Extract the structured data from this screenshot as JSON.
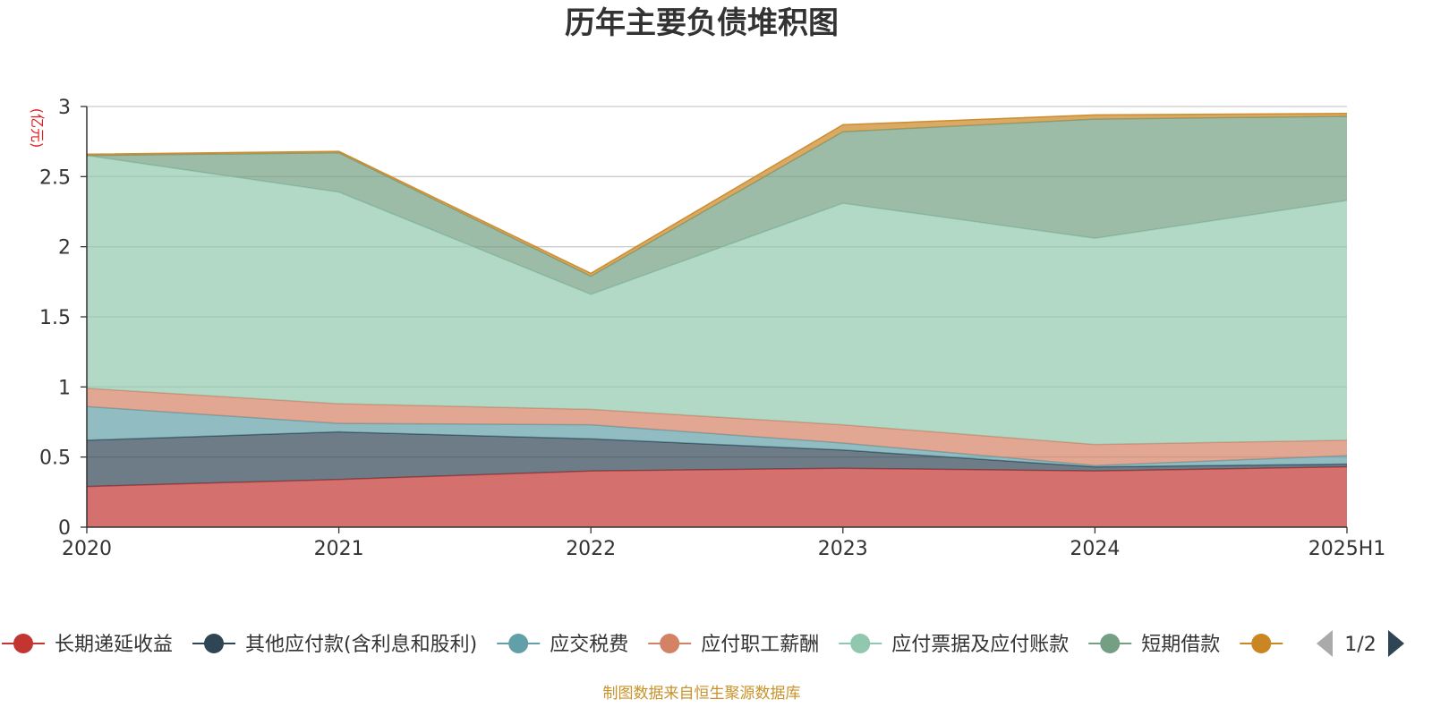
{
  "chart_data": {
    "type": "area",
    "stacked": true,
    "title": "历年主要负债堆积图",
    "y_unit_label": "(亿元)",
    "categories": [
      "2020",
      "2021",
      "2022",
      "2023",
      "2024",
      "2025H1"
    ],
    "ylim": [
      0,
      3
    ],
    "y_ticks": [
      "0",
      "0.5",
      "1",
      "1.5",
      "2",
      "2.5",
      "3"
    ],
    "grid": true,
    "legend_position": "bottom",
    "series": [
      {
        "name": "长期递延收益",
        "color": "#c23531",
        "values": [
          0.29,
          0.34,
          0.4,
          0.42,
          0.4,
          0.43
        ]
      },
      {
        "name": "其他应付款(含利息和股利)",
        "color": "#2f4554",
        "values": [
          0.33,
          0.34,
          0.23,
          0.13,
          0.03,
          0.02
        ]
      },
      {
        "name": "应交税费",
        "color": "#61a0a8",
        "values": [
          0.24,
          0.06,
          0.1,
          0.05,
          0.01,
          0.06
        ]
      },
      {
        "name": "应付职工薪酬",
        "color": "#d48265",
        "values": [
          0.13,
          0.14,
          0.11,
          0.13,
          0.15,
          0.11
        ]
      },
      {
        "name": "应付票据及应付账款",
        "color": "#91c7ae",
        "values": [
          1.66,
          1.51,
          0.82,
          1.58,
          1.47,
          1.71
        ]
      },
      {
        "name": "短期借款",
        "color": "#749f83",
        "values": [
          0.0,
          0.28,
          0.13,
          0.51,
          0.85,
          0.6
        ]
      },
      {
        "name": "",
        "color": "#ca8622",
        "values": [
          0.01,
          0.01,
          0.02,
          0.05,
          0.03,
          0.02
        ]
      }
    ]
  },
  "legend": {
    "page_indicator": "1/2"
  },
  "footer": {
    "source_text": "制图数据来自恒生聚源数据库"
  }
}
